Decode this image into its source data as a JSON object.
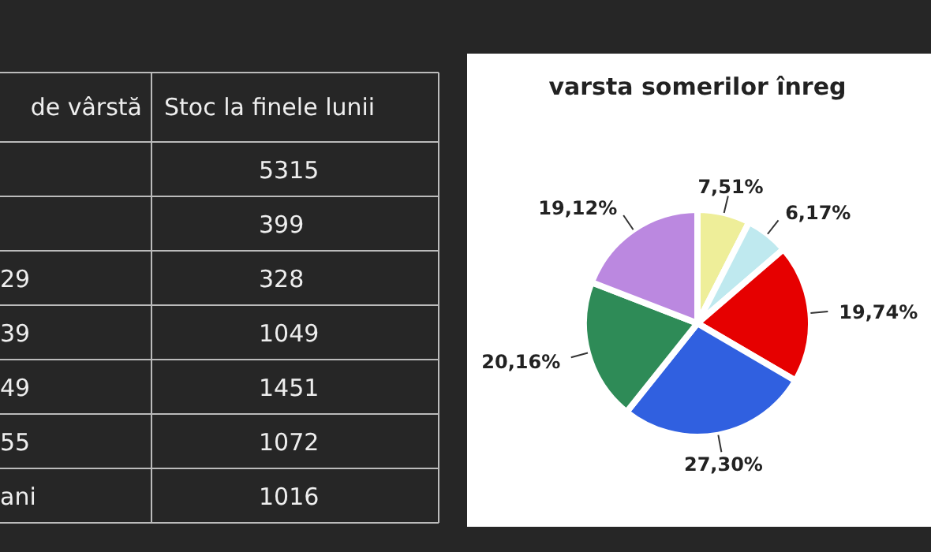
{
  "chart_data": [
    {
      "type": "other",
      "annotations": [
        "de vârstă",
        "Stoc la finele lunii"
      ],
      "categories": [
        null,
        null,
        "29",
        "39",
        "49",
        "55",
        "ani"
      ],
      "values": [
        5315,
        399,
        328,
        1049,
        1451,
        1072,
        1016
      ],
      "data_labels": true
    },
    {
      "type": "pie",
      "title": "varsta somerilor înreg",
      "categories": [
        null,
        null,
        null,
        null,
        null,
        null
      ],
      "values": [
        7.51,
        6.17,
        19.74,
        27.3,
        20.16,
        19.12
      ],
      "colors": [
        "#eeee99",
        "#bfe9ef",
        "#e60000",
        "#3060e0",
        "#2e8b57",
        "#bb88e0"
      ],
      "value_labels": [
        "7,51%",
        "6,17%",
        "19,74%",
        "27,30%",
        "20,16%",
        "19,12%"
      ]
    }
  ]
}
